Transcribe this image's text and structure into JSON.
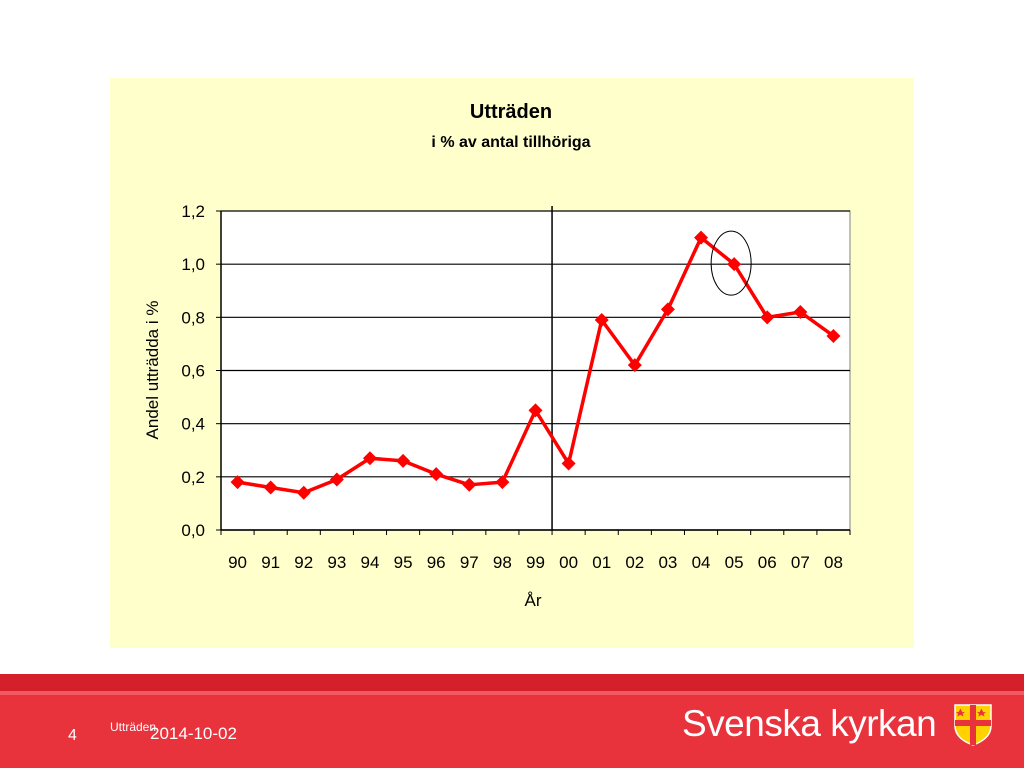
{
  "chart_data": {
    "type": "line",
    "title": "Utträden",
    "subtitle": "i % av antal tillhöriga",
    "xlabel": "År",
    "ylabel": "Andel utträdda i %",
    "categories": [
      "90",
      "91",
      "92",
      "93",
      "94",
      "95",
      "96",
      "97",
      "98",
      "99",
      "00",
      "01",
      "02",
      "03",
      "04",
      "05",
      "06",
      "07",
      "08"
    ],
    "series": [
      {
        "values": [
          0.18,
          0.16,
          0.14,
          0.19,
          0.27,
          0.26,
          0.21,
          0.17,
          0.18,
          0.45,
          0.25,
          0.79,
          0.62,
          0.83,
          1.1,
          1.0,
          0.8,
          0.82,
          0.73
        ]
      }
    ],
    "ylim": [
      0,
      1.2
    ],
    "yticks": [
      "0,0",
      "0,2",
      "0,4",
      "0,6",
      "0,8",
      "1,0",
      "1,2"
    ],
    "grid": true,
    "divider_after_category": "99",
    "highlighted_category": "05",
    "colors": {
      "line": "#ff0000",
      "marker": "#ff0000",
      "background": "#ffffcc"
    }
  },
  "footer": {
    "slide_number": "4",
    "caption": "Utträden",
    "date": "2014-10-02",
    "brand": "Svenska kyrkan",
    "bar_color": "#e8323c"
  }
}
